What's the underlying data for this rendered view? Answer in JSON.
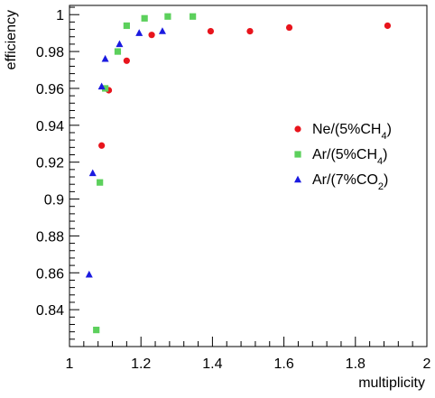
{
  "chart_data": {
    "type": "scatter",
    "xlabel": "multiplicity",
    "ylabel": "efficiency",
    "xlim": [
      1.0,
      2.0
    ],
    "ylim": [
      0.82,
      1.005
    ],
    "x_ticks": [
      "1",
      "1.2",
      "1.4",
      "1.6",
      "1.8",
      "2"
    ],
    "y_ticks": [
      "0.84",
      "0.86",
      "0.88",
      "0.9",
      "0.92",
      "0.94",
      "0.96",
      "0.98",
      "1"
    ],
    "x_tick_values": [
      1.0,
      1.2,
      1.4,
      1.6,
      1.8,
      2.0
    ],
    "y_tick_values": [
      0.84,
      0.86,
      0.88,
      0.9,
      0.92,
      0.94,
      0.96,
      0.98,
      1.0
    ],
    "grid": false,
    "legend_position": "right-middle",
    "series": [
      {
        "name": "Ne/(5%CH4)",
        "legend_main": "Ne/(5%CH",
        "legend_sub": "4",
        "legend_close": ")",
        "marker": "circle",
        "color": "#e8141c",
        "points": [
          [
            1.09,
            0.929
          ],
          [
            1.11,
            0.959
          ],
          [
            1.16,
            0.975
          ],
          [
            1.23,
            0.989
          ],
          [
            1.395,
            0.991
          ],
          [
            1.505,
            0.991
          ],
          [
            1.615,
            0.993
          ],
          [
            1.89,
            0.994
          ]
        ]
      },
      {
        "name": "Ar/(5%CH4)",
        "legend_main": "Ar/(5%CH",
        "legend_sub": "4",
        "legend_close": ")",
        "marker": "square",
        "color": "#5cd05c",
        "points": [
          [
            1.075,
            0.829
          ],
          [
            1.085,
            0.909
          ],
          [
            1.1,
            0.96
          ],
          [
            1.135,
            0.98
          ],
          [
            1.16,
            0.994
          ],
          [
            1.21,
            0.998
          ],
          [
            1.275,
            0.999
          ],
          [
            1.345,
            0.999
          ]
        ]
      },
      {
        "name": "Ar/(7%CO2)",
        "legend_main": "Ar/(7%CO",
        "legend_sub": "2",
        "legend_close": ")",
        "marker": "triangle",
        "color": "#1a1ae0",
        "points": [
          [
            1.055,
            0.859
          ],
          [
            1.065,
            0.914
          ],
          [
            1.09,
            0.961
          ],
          [
            1.1,
            0.976
          ],
          [
            1.14,
            0.984
          ],
          [
            1.195,
            0.99
          ],
          [
            1.26,
            0.991
          ]
        ]
      }
    ]
  }
}
